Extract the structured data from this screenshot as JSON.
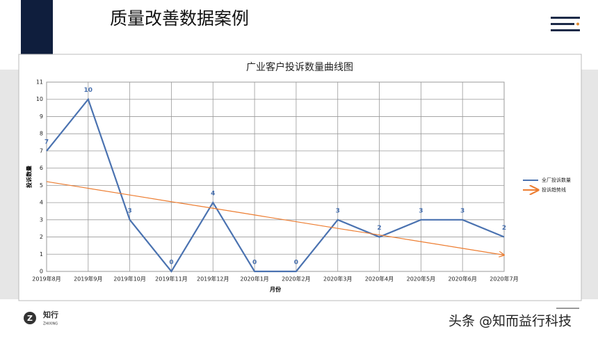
{
  "page": {
    "title": "质量改善数据案例",
    "logo": {
      "name": "知行",
      "sub": "ZHIXING"
    },
    "watermark": "头条 @知而益行科技"
  },
  "chart_data": {
    "type": "line",
    "title": "广业客户投诉数量曲线图",
    "x_label": "月份",
    "y_label": "投诉数量",
    "categories": [
      "2019年8月",
      "2019年9月",
      "2019年10月",
      "2019年11月",
      "2019年12月",
      "2020年1月",
      "2020年2月",
      "2020年3月",
      "2020年4月",
      "2020年5月",
      "2020年6月",
      "2020年7月"
    ],
    "series": [
      {
        "name": "全厂投诉数量",
        "color": "#4a72b0",
        "values": [
          7,
          10,
          3,
          0,
          4,
          0,
          0,
          3,
          2,
          3,
          3,
          2
        ],
        "data_labels": true
      },
      {
        "name": "投诉趋势线",
        "color": "#ed7d31",
        "values": [
          5.22,
          4.83,
          4.44,
          4.05,
          3.67,
          3.28,
          2.89,
          2.5,
          2.12,
          1.73,
          1.34,
          0.95
        ],
        "arrow": true
      }
    ],
    "ylim": [
      0,
      11
    ],
    "yticks": [
      0,
      1,
      2,
      3,
      4,
      5,
      6,
      7,
      8,
      9,
      10,
      11
    ],
    "grid": true,
    "legend": "right"
  }
}
